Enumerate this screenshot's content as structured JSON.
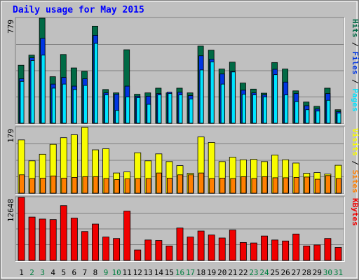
{
  "chart_data": {
    "type": "bar",
    "title": "Daily usage for May 2015",
    "categories": [
      "1",
      "2",
      "3",
      "4",
      "5",
      "6",
      "7",
      "8",
      "9",
      "10",
      "11",
      "12",
      "13",
      "14",
      "15",
      "16",
      "17",
      "18",
      "19",
      "20",
      "21",
      "22",
      "23",
      "24",
      "25",
      "26",
      "27",
      "28",
      "29",
      "30",
      "31"
    ],
    "weekend_days": [
      "2",
      "3",
      "9",
      "10",
      "16",
      "17",
      "23",
      "24",
      "30",
      "31"
    ],
    "grid": true,
    "panels": [
      {
        "id": "hits",
        "max_label": "779",
        "ylim": [
          0,
          779
        ],
        "legend": [
          "Pages",
          "Files",
          "Hits"
        ],
        "series": [
          {
            "name": "Hits",
            "color": "#006a45",
            "values": [
              430,
              505,
              779,
              345,
              510,
              410,
              385,
              720,
              250,
              225,
              545,
              215,
              225,
              260,
              225,
              260,
              225,
              572,
              542,
              402,
              453,
              298,
              253,
              223,
              450,
              402,
              240,
              157,
              125,
              260,
              100
            ]
          },
          {
            "name": "Files",
            "color": "#0036e2",
            "values": [
              330,
              485,
              630,
              290,
              340,
              275,
              330,
              652,
              225,
              215,
              275,
              200,
              200,
              220,
              230,
              230,
              205,
              500,
              475,
              365,
              385,
              245,
              225,
              210,
              400,
              305,
              220,
              130,
              105,
              220,
              85
            ]
          },
          {
            "name": "Pages",
            "color": "#00e4ff",
            "values": [
              310,
              465,
              505,
              260,
              290,
              250,
              280,
              592,
              210,
              95,
              195,
              190,
              140,
              210,
              220,
              210,
              180,
              395,
              455,
              290,
              380,
              215,
              210,
              195,
              360,
              210,
              160,
              100,
              90,
              170,
              75
            ]
          }
        ]
      },
      {
        "id": "visits",
        "max_label": "179",
        "ylim": [
          0,
          179
        ],
        "legend": [
          "Sites",
          "Visits"
        ],
        "series": [
          {
            "name": "Visits",
            "color": "#f8fc00",
            "values": [
              145,
              88,
              106,
              133,
              151,
              159,
              179,
              118,
              121,
              55,
              58,
              110,
              88,
              107,
              86,
              75,
              54,
              153,
              138,
              86,
              98,
              91,
              92,
              86,
              104,
              91,
              82,
              54,
              56,
              52,
              76
            ]
          },
          {
            "name": "Sites",
            "color": "#ff7f00",
            "values": [
              50,
              40,
              41,
              47,
              41,
              43,
              45,
              45,
              40,
              37,
              39,
              40,
              40,
              55,
              41,
              50,
              50,
              55,
              40,
              41,
              40,
              45,
              40,
              45,
              42,
              42,
              43,
              44,
              38,
              48,
              40
            ]
          }
        ]
      },
      {
        "id": "kbytes",
        "max_label": "12648",
        "ylim": [
          0,
          12648
        ],
        "legend": [
          "KBytes"
        ],
        "series": [
          {
            "name": "KBytes",
            "color": "#f00000",
            "values": [
              12648,
              8700,
              8300,
              8200,
              11000,
              8500,
              5800,
              7300,
              4700,
              4400,
              9900,
              2100,
              4100,
              4000,
              2900,
              6500,
              4700,
              5900,
              5100,
              4500,
              6100,
              3600,
              3500,
              4900,
              4100,
              3900,
              5300,
              2900,
              3100,
              4400,
              2600
            ]
          }
        ]
      }
    ],
    "colors": {
      "background": "#c0c0c0",
      "border_dark": "#808080",
      "title": "#0000ff",
      "weekday_label": "#000000",
      "weekend_label": "#008040"
    }
  }
}
